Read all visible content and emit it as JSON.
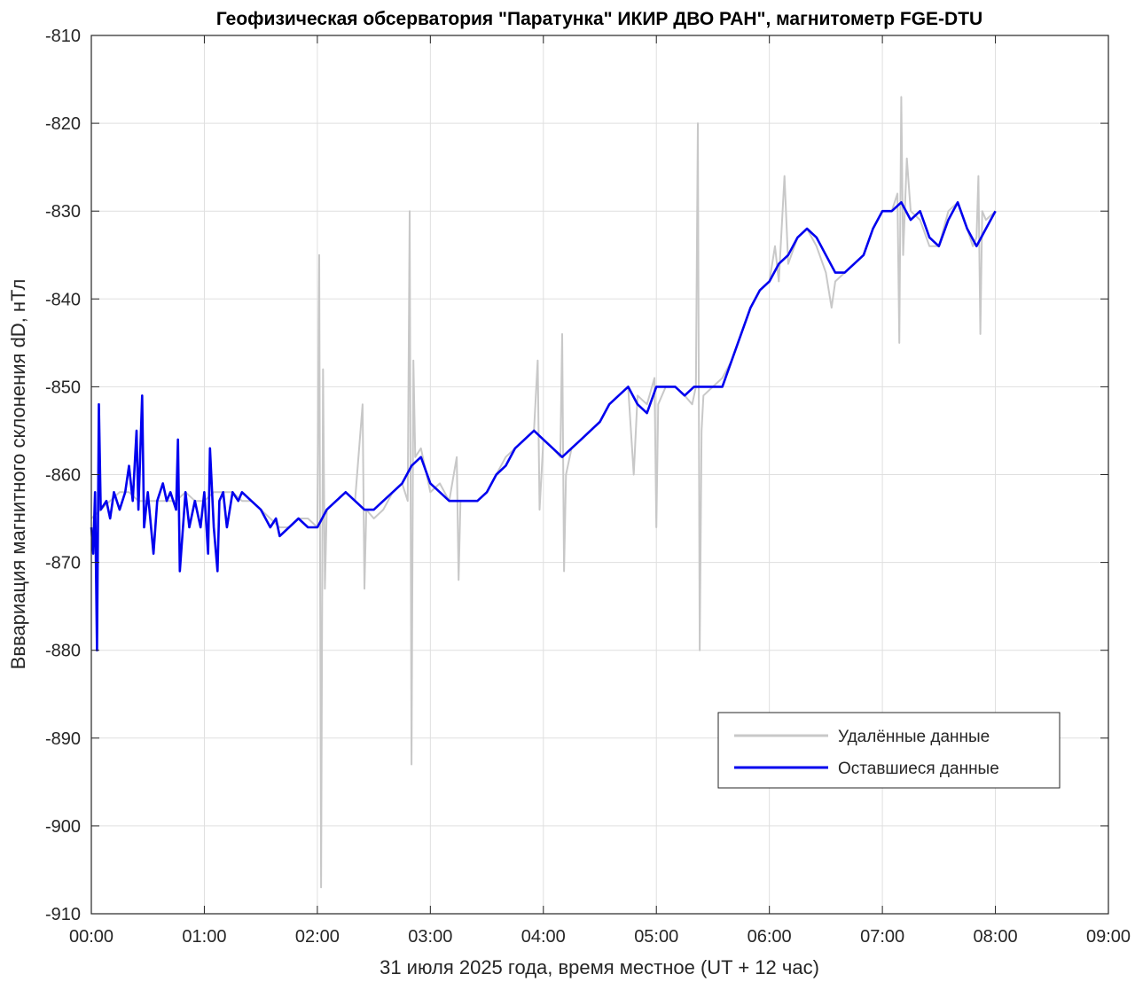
{
  "chart_data": {
    "type": "line",
    "title": "Геофизическая обсерватория \"Паратунка\" ИКИР ДВО РАН\", магнитометр FGE-DTU",
    "xlabel": "31 июля 2025 года, время местное (UT + 12 час)",
    "ylabel": "Вввариация магнитного склонения dD, нТл",
    "x_ticks": [
      "00:00",
      "01:00",
      "02:00",
      "03:00",
      "04:00",
      "05:00",
      "06:00",
      "07:00",
      "08:00",
      "09:00"
    ],
    "y_ticks": [
      -810,
      -820,
      -830,
      -840,
      -850,
      -860,
      -870,
      -880,
      -890,
      -900,
      -910
    ],
    "xlim": [
      "00:00",
      "09:00"
    ],
    "ylim": [
      -910,
      -810
    ],
    "grid": true,
    "legend_position": "lower-right",
    "series": [
      {
        "name": "Удалённые данные",
        "color": "#c8c8c8",
        "points": [
          [
            "00:00",
            -865
          ],
          [
            "00:05",
            -864
          ],
          [
            "00:10",
            -863
          ],
          [
            "00:15",
            -862
          ],
          [
            "00:20",
            -862
          ],
          [
            "00:25",
            -863
          ],
          [
            "00:30",
            -863
          ],
          [
            "00:35",
            -863
          ],
          [
            "00:40",
            -863
          ],
          [
            "00:45",
            -863
          ],
          [
            "00:50",
            -862
          ],
          [
            "00:55",
            -863
          ],
          [
            "01:00",
            -863
          ],
          [
            "01:05",
            -862
          ],
          [
            "01:10",
            -862
          ],
          [
            "01:15",
            -862
          ],
          [
            "01:20",
            -863
          ],
          [
            "01:25",
            -863
          ],
          [
            "01:30",
            -864
          ],
          [
            "01:35",
            -865
          ],
          [
            "01:40",
            -866
          ],
          [
            "01:45",
            -866
          ],
          [
            "01:50",
            -865
          ],
          [
            "01:55",
            -865
          ],
          [
            "02:00",
            -866
          ],
          [
            "02:01",
            -835
          ],
          [
            "02:02",
            -907
          ],
          [
            "02:03",
            -848
          ],
          [
            "02:04",
            -873
          ],
          [
            "02:05",
            -864
          ],
          [
            "02:10",
            -863
          ],
          [
            "02:15",
            -862
          ],
          [
            "02:20",
            -863
          ],
          [
            "02:24",
            -852
          ],
          [
            "02:25",
            -873
          ],
          [
            "02:26",
            -864
          ],
          [
            "02:30",
            -865
          ],
          [
            "02:35",
            -864
          ],
          [
            "02:40",
            -862
          ],
          [
            "02:45",
            -861
          ],
          [
            "02:48",
            -863
          ],
          [
            "02:49",
            -830
          ],
          [
            "02:50",
            -893
          ],
          [
            "02:51",
            -847
          ],
          [
            "02:52",
            -858
          ],
          [
            "02:55",
            -857
          ],
          [
            "02:58",
            -860
          ],
          [
            "03:00",
            -862
          ],
          [
            "03:05",
            -861
          ],
          [
            "03:10",
            -863
          ],
          [
            "03:14",
            -858
          ],
          [
            "03:15",
            -872
          ],
          [
            "03:16",
            -863
          ],
          [
            "03:20",
            -863
          ],
          [
            "03:25",
            -863
          ],
          [
            "03:30",
            -862
          ],
          [
            "03:35",
            -860
          ],
          [
            "03:40",
            -858
          ],
          [
            "03:45",
            -857
          ],
          [
            "03:50",
            -856
          ],
          [
            "03:55",
            -855
          ],
          [
            "03:57",
            -847
          ],
          [
            "03:58",
            -864
          ],
          [
            "04:00",
            -856
          ],
          [
            "04:05",
            -857
          ],
          [
            "04:09",
            -858
          ],
          [
            "04:10",
            -844
          ],
          [
            "04:11",
            -871
          ],
          [
            "04:12",
            -860
          ],
          [
            "04:15",
            -857
          ],
          [
            "04:20",
            -856
          ],
          [
            "04:25",
            -855
          ],
          [
            "04:30",
            -854
          ],
          [
            "04:35",
            -852
          ],
          [
            "04:40",
            -851
          ],
          [
            "04:45",
            -850
          ],
          [
            "04:48",
            -860
          ],
          [
            "04:50",
            -851
          ],
          [
            "04:55",
            -852
          ],
          [
            "04:59",
            -849
          ],
          [
            "05:00",
            -866
          ],
          [
            "05:01",
            -852
          ],
          [
            "05:05",
            -850
          ],
          [
            "05:10",
            -850
          ],
          [
            "05:15",
            -851
          ],
          [
            "05:19",
            -852
          ],
          [
            "05:21",
            -850
          ],
          [
            "05:22",
            -820
          ],
          [
            "05:23",
            -880
          ],
          [
            "05:24",
            -855
          ],
          [
            "05:25",
            -851
          ],
          [
            "05:30",
            -850
          ],
          [
            "05:35",
            -849
          ],
          [
            "05:40",
            -847
          ],
          [
            "05:45",
            -844
          ],
          [
            "05:50",
            -841
          ],
          [
            "05:55",
            -839
          ],
          [
            "06:00",
            -838
          ],
          [
            "06:03",
            -834
          ],
          [
            "06:05",
            -838
          ],
          [
            "06:08",
            -826
          ],
          [
            "06:10",
            -836
          ],
          [
            "06:15",
            -833
          ],
          [
            "06:20",
            -832
          ],
          [
            "06:25",
            -834
          ],
          [
            "06:30",
            -837
          ],
          [
            "06:33",
            -841
          ],
          [
            "06:35",
            -838
          ],
          [
            "06:40",
            -837
          ],
          [
            "06:45",
            -836
          ],
          [
            "06:50",
            -835
          ],
          [
            "06:55",
            -832
          ],
          [
            "07:00",
            -830
          ],
          [
            "07:05",
            -830
          ],
          [
            "07:08",
            -828
          ],
          [
            "07:09",
            -845
          ],
          [
            "07:10",
            -817
          ],
          [
            "07:11",
            -835
          ],
          [
            "07:13",
            -824
          ],
          [
            "07:15",
            -830
          ],
          [
            "07:20",
            -831
          ],
          [
            "07:25",
            -834
          ],
          [
            "07:30",
            -834
          ],
          [
            "07:35",
            -830
          ],
          [
            "07:40",
            -829
          ],
          [
            "07:45",
            -832
          ],
          [
            "07:48",
            -834
          ],
          [
            "07:50",
            -833
          ],
          [
            "07:51",
            -826
          ],
          [
            "07:52",
            -844
          ],
          [
            "07:53",
            -830
          ],
          [
            "07:55",
            -831
          ],
          [
            "08:00",
            -830
          ]
        ]
      },
      {
        "name": "Оставшиеся данные",
        "color": "#0000ee",
        "points": [
          [
            "00:00",
            -866
          ],
          [
            "00:01",
            -869
          ],
          [
            "00:02",
            -862
          ],
          [
            "00:03",
            -880
          ],
          [
            "00:04",
            -852
          ],
          [
            "00:05",
            -864
          ],
          [
            "00:08",
            -863
          ],
          [
            "00:10",
            -865
          ],
          [
            "00:12",
            -862
          ],
          [
            "00:15",
            -864
          ],
          [
            "00:18",
            -862
          ],
          [
            "00:20",
            -859
          ],
          [
            "00:22",
            -863
          ],
          [
            "00:24",
            -855
          ],
          [
            "00:25",
            -864
          ],
          [
            "00:27",
            -851
          ],
          [
            "00:28",
            -866
          ],
          [
            "00:30",
            -862
          ],
          [
            "00:33",
            -869
          ],
          [
            "00:35",
            -863
          ],
          [
            "00:38",
            -861
          ],
          [
            "00:40",
            -863
          ],
          [
            "00:42",
            -862
          ],
          [
            "00:45",
            -864
          ],
          [
            "00:46",
            -856
          ],
          [
            "00:47",
            -871
          ],
          [
            "00:50",
            -862
          ],
          [
            "00:52",
            -866
          ],
          [
            "00:55",
            -863
          ],
          [
            "00:58",
            -866
          ],
          [
            "01:00",
            -862
          ],
          [
            "01:02",
            -869
          ],
          [
            "01:03",
            -857
          ],
          [
            "01:05",
            -866
          ],
          [
            "01:07",
            -871
          ],
          [
            "01:08",
            -863
          ],
          [
            "01:10",
            -862
          ],
          [
            "01:12",
            -866
          ],
          [
            "01:15",
            -862
          ],
          [
            "01:18",
            -863
          ],
          [
            "01:20",
            -862
          ],
          [
            "01:25",
            -863
          ],
          [
            "01:30",
            -864
          ],
          [
            "01:35",
            -866
          ],
          [
            "01:38",
            -865
          ],
          [
            "01:40",
            -867
          ],
          [
            "01:45",
            -866
          ],
          [
            "01:50",
            -865
          ],
          [
            "01:55",
            -866
          ],
          [
            "02:00",
            -866
          ],
          [
            "02:05",
            -864
          ],
          [
            "02:10",
            -863
          ],
          [
            "02:15",
            -862
          ],
          [
            "02:20",
            -863
          ],
          [
            "02:25",
            -864
          ],
          [
            "02:30",
            -864
          ],
          [
            "02:35",
            -863
          ],
          [
            "02:40",
            -862
          ],
          [
            "02:45",
            -861
          ],
          [
            "02:50",
            -859
          ],
          [
            "02:55",
            -858
          ],
          [
            "03:00",
            -861
          ],
          [
            "03:05",
            -862
          ],
          [
            "03:10",
            -863
          ],
          [
            "03:15",
            -863
          ],
          [
            "03:20",
            -863
          ],
          [
            "03:25",
            -863
          ],
          [
            "03:30",
            -862
          ],
          [
            "03:35",
            -860
          ],
          [
            "03:40",
            -859
          ],
          [
            "03:45",
            -857
          ],
          [
            "03:50",
            -856
          ],
          [
            "03:55",
            -855
          ],
          [
            "04:00",
            -856
          ],
          [
            "04:05",
            -857
          ],
          [
            "04:10",
            -858
          ],
          [
            "04:15",
            -857
          ],
          [
            "04:20",
            -856
          ],
          [
            "04:25",
            -855
          ],
          [
            "04:30",
            -854
          ],
          [
            "04:35",
            -852
          ],
          [
            "04:40",
            -851
          ],
          [
            "04:45",
            -850
          ],
          [
            "04:50",
            -852
          ],
          [
            "04:55",
            -853
          ],
          [
            "05:00",
            -850
          ],
          [
            "05:05",
            -850
          ],
          [
            "05:10",
            -850
          ],
          [
            "05:15",
            -851
          ],
          [
            "05:20",
            -850
          ],
          [
            "05:25",
            -850
          ],
          [
            "05:30",
            -850
          ],
          [
            "05:35",
            -850
          ],
          [
            "05:40",
            -847
          ],
          [
            "05:45",
            -844
          ],
          [
            "05:50",
            -841
          ],
          [
            "05:55",
            -839
          ],
          [
            "06:00",
            -838
          ],
          [
            "06:05",
            -836
          ],
          [
            "06:10",
            -835
          ],
          [
            "06:15",
            -833
          ],
          [
            "06:20",
            -832
          ],
          [
            "06:25",
            -833
          ],
          [
            "06:30",
            -835
          ],
          [
            "06:35",
            -837
          ],
          [
            "06:40",
            -837
          ],
          [
            "06:45",
            -836
          ],
          [
            "06:50",
            -835
          ],
          [
            "06:55",
            -832
          ],
          [
            "07:00",
            -830
          ],
          [
            "07:05",
            -830
          ],
          [
            "07:10",
            -829
          ],
          [
            "07:15",
            -831
          ],
          [
            "07:20",
            -830
          ],
          [
            "07:25",
            -833
          ],
          [
            "07:30",
            -834
          ],
          [
            "07:35",
            -831
          ],
          [
            "07:40",
            -829
          ],
          [
            "07:45",
            -832
          ],
          [
            "07:50",
            -834
          ],
          [
            "07:55",
            -832
          ],
          [
            "08:00",
            -830
          ]
        ]
      }
    ]
  }
}
